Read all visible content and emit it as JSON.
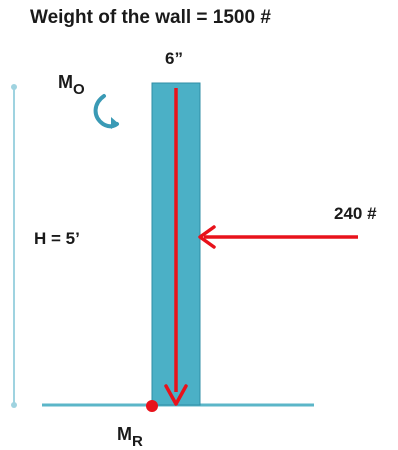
{
  "title": "Weight of the wall = 1500 #",
  "wall_thickness_label": "6”",
  "height_label": "H = 5’",
  "horizontal_force_label": "240 #",
  "overturning_moment": {
    "main": "M",
    "sub": "O"
  },
  "resisting_moment": {
    "main": "M",
    "sub": "R"
  },
  "colors": {
    "wall_fill": "#4bb0c6",
    "wall_edge": "#2f8ea6",
    "ground": "#5bb6c8",
    "height_line": "#9fd3e0",
    "force_arrow": "#e8121b",
    "pivot_point": "#e8121b",
    "moment_arrow": "#3a9ab5",
    "text": "#1a1a1a"
  }
}
